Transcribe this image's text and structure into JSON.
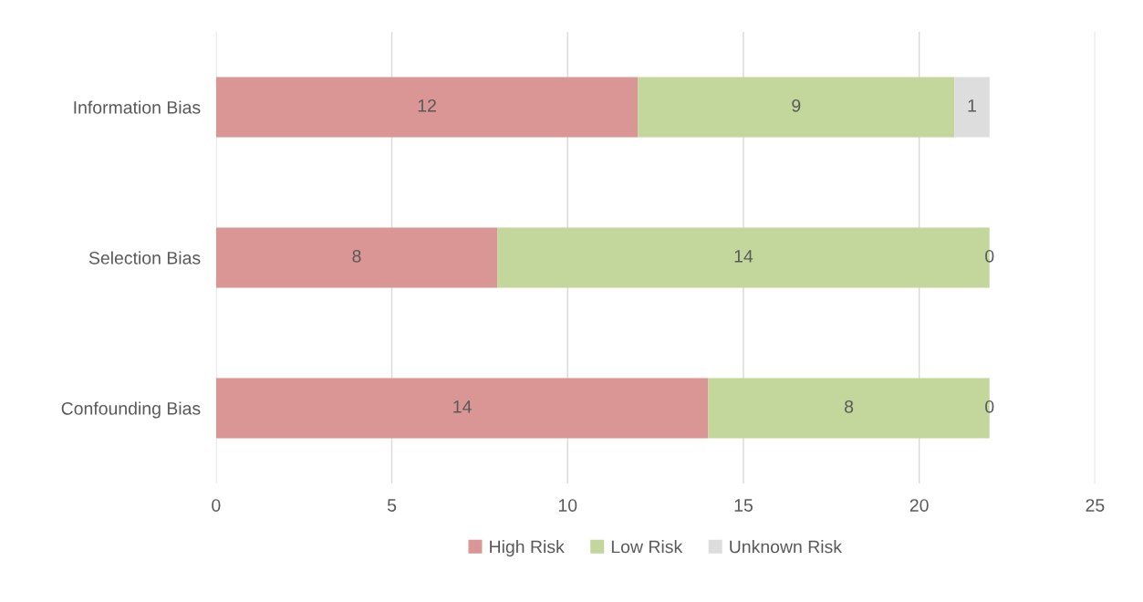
{
  "chart_data": {
    "type": "bar",
    "orientation": "horizontal",
    "stacked": true,
    "categories": [
      "Information Bias",
      "Selection Bias",
      "Confounding Bias"
    ],
    "series": [
      {
        "name": "High Risk",
        "color": "#d99694",
        "values": [
          12,
          8,
          14
        ]
      },
      {
        "name": "Low Risk",
        "color": "#c3d69b",
        "values": [
          9,
          14,
          8
        ]
      },
      {
        "name": "Unknown Risk",
        "color": "#dddddd",
        "values": [
          1,
          0,
          0
        ]
      }
    ],
    "xlim": [
      0,
      25
    ],
    "xticks": [
      0,
      5,
      10,
      15,
      20,
      25
    ],
    "grid": "x",
    "legend": "bottom",
    "data_labels": true
  }
}
